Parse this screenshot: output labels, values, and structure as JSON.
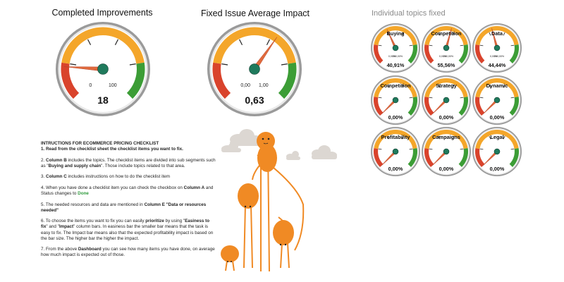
{
  "colors": {
    "red": "#d9432c",
    "orange": "#f4a62a",
    "green": "#3c9d36",
    "needle": "#e06a3c",
    "hub": "#1f7a5c",
    "character": "#f08a24",
    "cloud": "#dcd7d2"
  },
  "gauges_main": [
    {
      "title": "Completed Improvements",
      "min_label": "0",
      "max_label": "100",
      "value_text": "18",
      "value_fraction": 0.18
    },
    {
      "title": "Fixed Issue Average Impact",
      "min_label": "0,00",
      "max_label": "1,00",
      "value_text": "0,63",
      "value_fraction": 0.63
    }
  ],
  "topics": {
    "title": "Individual topics fixed",
    "items": [
      {
        "label": "Buying",
        "value_text": "40,91%",
        "min_label": "0,00%",
        "max_label": "100,00%",
        "value_fraction": 0.4091
      },
      {
        "label": "Competition",
        "value_text": "55,56%",
        "min_label": "0,00%",
        "max_label": "100,00%",
        "value_fraction": 0.5556
      },
      {
        "label": "Data",
        "value_text": "44,44%",
        "min_label": "0,00%",
        "max_label": "100,00%",
        "value_fraction": 0.4444
      },
      {
        "label": "Competition",
        "value_text": "0,00%",
        "value_fraction": 0.0
      },
      {
        "label": "Strategy",
        "value_text": "0,00%",
        "value_fraction": 0.0
      },
      {
        "label": "Dynamic",
        "value_text": "0,00%",
        "value_fraction": 0.0
      },
      {
        "label": "Profitability",
        "value_text": "0,00%",
        "value_fraction": 0.0
      },
      {
        "label": "Campaigns",
        "value_text": "0,00%",
        "value_fraction": 0.0
      },
      {
        "label": "Legal",
        "value_text": "0,00%",
        "value_fraction": 0.0
      }
    ]
  },
  "instructions": {
    "heading": "INTRUCTIONS FOR ECOMMERCE PRICING CHECKLIST",
    "s1": "1. Read from the checklist sheet the checklist items you want to fix.",
    "s2a": "2. ",
    "s2b": "Column B",
    "s2c": " includes the topics. The checklist items are divided into sub segments such as \"",
    "s2d": "Buying and supply chain",
    "s2e": "\". Those include topics related to that area.",
    "s3a": "3. ",
    "s3b": "Column C",
    "s3c": " includes instructions on how to do the checklist item",
    "s4a": "4. When you have done a checklist item you can check the checkbox on ",
    "s4b": "Column A",
    "s4c": " and Status changes to ",
    "s4d": "Done",
    "s5a": "5. The needed resources and data are mentioned in ",
    "s5b": "Column E \"Data or resources needed\"",
    "s6a": "6. To choose the items you want to fix you can easily ",
    "s6b": "prioritize",
    "s6c": " by using \"",
    "s6d": "Easiness to fix",
    "s6e": "\" and \"",
    "s6f": "Impact",
    "s6g": "\" column bars. In easiness bar the smaller bar means that the task is easy to fix. The Impact bar means also that the expected profitability impact is based on the bar size. The higher bar the higher the impact.",
    "s7a": "7. From the above ",
    "s7b": "Dashboard",
    "s7c": " you can see how many items you have done, on average how much impact is expected out of those."
  }
}
